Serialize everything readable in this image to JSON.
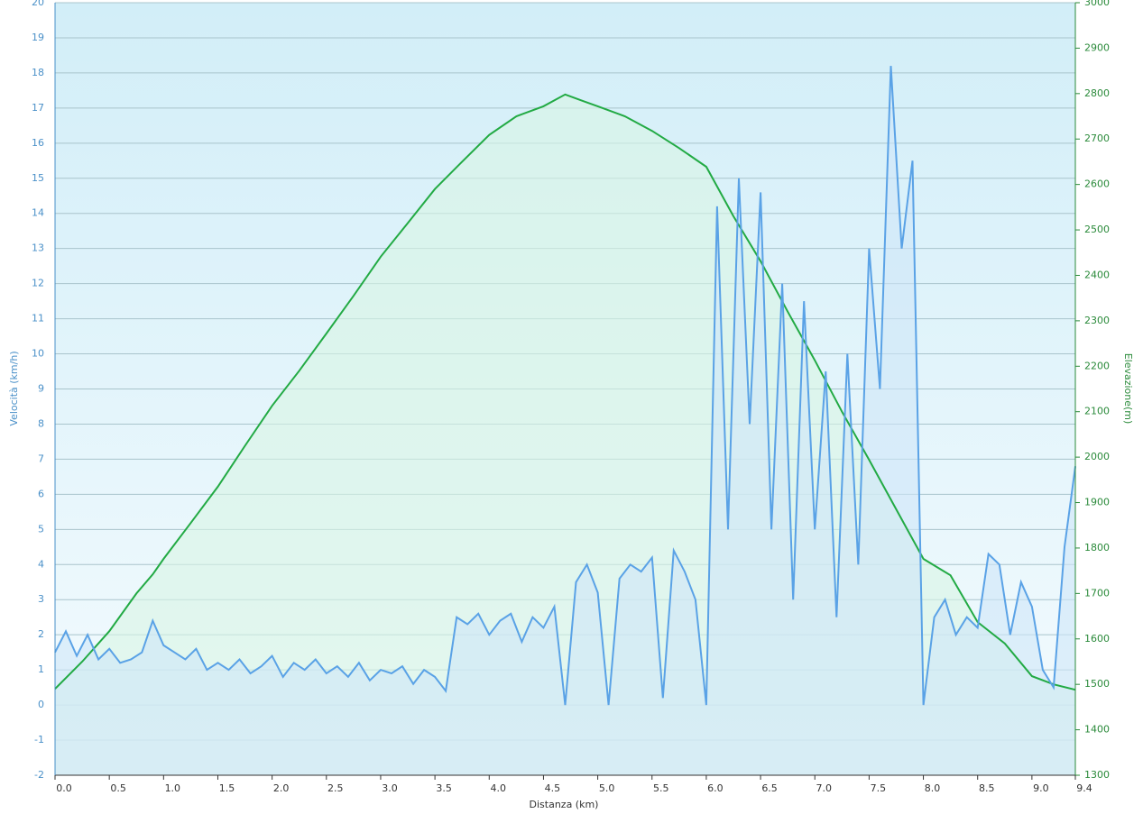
{
  "chart_data": {
    "type": "line",
    "xlabel": "Distanza  (km)",
    "ylabel": "Velocità (km/h)",
    "y2label": "Elevazione(m)",
    "xlim": [
      0,
      9.4
    ],
    "xticks": [
      {
        "value": 0,
        "label": "0.0"
      },
      0.5,
      {
        "value": 1,
        "label": "1.0"
      },
      1.5,
      {
        "value": 2,
        "label": "2.0"
      },
      2.5,
      {
        "value": 3,
        "label": "3.0"
      },
      3.5,
      {
        "value": 4,
        "label": "4.0"
      },
      4.5,
      {
        "value": 5,
        "label": "5.0"
      },
      5.5,
      {
        "value": 6,
        "label": "6.0"
      },
      6.5,
      {
        "value": 7,
        "label": "7.0"
      },
      7.5,
      {
        "value": 8,
        "label": "8.0"
      },
      8.5,
      {
        "value": 9,
        "label": "9.0"
      },
      9.4
    ],
    "ylim": [
      -2,
      20
    ],
    "yticks": [
      -2,
      -1,
      0,
      1,
      2,
      3,
      4,
      5,
      6,
      7,
      8,
      9,
      10,
      11,
      12,
      13,
      14,
      15,
      16,
      17,
      18,
      19,
      20
    ],
    "y2lim": [
      1300,
      3000
    ],
    "y2ticks": [
      1300,
      1400,
      1500,
      1600,
      1700,
      1800,
      1900,
      2000,
      2100,
      2200,
      2300,
      2400,
      2500,
      2600,
      2700,
      2800,
      2900,
      3000
    ],
    "grid": true,
    "series": [
      {
        "color": "#5aa2e6",
        "fill": "#cfe6f8",
        "x": [
          0.0,
          0.1,
          0.2,
          0.3,
          0.4,
          0.5,
          0.6,
          0.7,
          0.8,
          0.9,
          1.0,
          1.1,
          1.2,
          1.3,
          1.4,
          1.5,
          1.6,
          1.7,
          1.8,
          1.9,
          2.0,
          2.1,
          2.2,
          2.3,
          2.4,
          2.5,
          2.6,
          2.7,
          2.8,
          2.9,
          3.0,
          3.1,
          3.2,
          3.3,
          3.4,
          3.5,
          3.6,
          3.7,
          3.8,
          3.9,
          4.0,
          4.1,
          4.2,
          4.3,
          4.4,
          4.5,
          4.6,
          4.7,
          4.8,
          4.9,
          5.0,
          5.1,
          5.2,
          5.3,
          5.4,
          5.5,
          5.6,
          5.7,
          5.8,
          5.9,
          6.0,
          6.1,
          6.2,
          6.3,
          6.4,
          6.5,
          6.6,
          6.7,
          6.8,
          6.9,
          7.0,
          7.1,
          7.2,
          7.3,
          7.4,
          7.5,
          7.6,
          7.7,
          7.8,
          7.9,
          8.0,
          8.1,
          8.2,
          8.3,
          8.4,
          8.5,
          8.6,
          8.7,
          8.8,
          8.9,
          9.0,
          9.1,
          9.2,
          9.3,
          9.4
        ],
        "values": [
          1.5,
          2.1,
          1.4,
          2.0,
          1.3,
          1.6,
          1.2,
          1.3,
          1.5,
          2.4,
          1.7,
          1.5,
          1.3,
          1.6,
          1.0,
          1.2,
          1.0,
          1.3,
          0.9,
          1.1,
          1.4,
          0.8,
          1.2,
          1.0,
          1.3,
          0.9,
          1.1,
          0.8,
          1.2,
          0.7,
          1.0,
          0.9,
          1.1,
          0.6,
          1.0,
          0.8,
          0.4,
          2.5,
          2.3,
          2.6,
          2.0,
          2.4,
          2.6,
          1.8,
          2.5,
          2.2,
          2.8,
          0.0,
          3.5,
          4.0,
          3.2,
          0.0,
          3.6,
          4.0,
          3.8,
          4.2,
          0.2,
          4.4,
          3.8,
          3.0,
          0.0,
          14.2,
          5.0,
          15.0,
          8.0,
          14.6,
          5.0,
          12.0,
          3.0,
          11.5,
          5.0,
          9.5,
          2.5,
          10.0,
          4.0,
          13.0,
          9.0,
          18.2,
          13.0,
          15.5,
          0.0,
          2.5,
          3.0,
          2.0,
          2.5,
          2.2,
          4.3,
          4.0,
          2.0,
          3.5,
          2.8,
          1.0,
          0.5,
          4.5,
          6.8
        ]
      },
      {
        "color": "#22aa44",
        "fill": "#d8f5e4",
        "axis": "y2",
        "x": [
          0.0,
          0.25,
          0.5,
          0.75,
          0.9,
          1.0,
          1.25,
          1.5,
          1.75,
          2.0,
          2.25,
          2.5,
          2.75,
          3.0,
          3.25,
          3.5,
          3.75,
          4.0,
          4.25,
          4.5,
          4.7,
          4.85,
          5.0,
          5.25,
          5.5,
          5.75,
          6.0,
          6.25,
          6.5,
          6.75,
          7.0,
          7.25,
          7.5,
          7.75,
          8.0,
          8.25,
          8.5,
          8.75,
          9.0,
          9.2,
          9.4
        ],
        "values": [
          1490,
          1550,
          1617,
          1700,
          1742,
          1776,
          1855,
          1935,
          2025,
          2113,
          2190,
          2272,
          2355,
          2441,
          2515,
          2590,
          2650,
          2709,
          2750,
          2772,
          2798,
          2785,
          2772,
          2750,
          2718,
          2680,
          2639,
          2530,
          2431,
          2320,
          2213,
          2100,
          1994,
          1885,
          1776,
          1740,
          1637,
          1590,
          1518,
          1500,
          1488
        ]
      }
    ]
  }
}
